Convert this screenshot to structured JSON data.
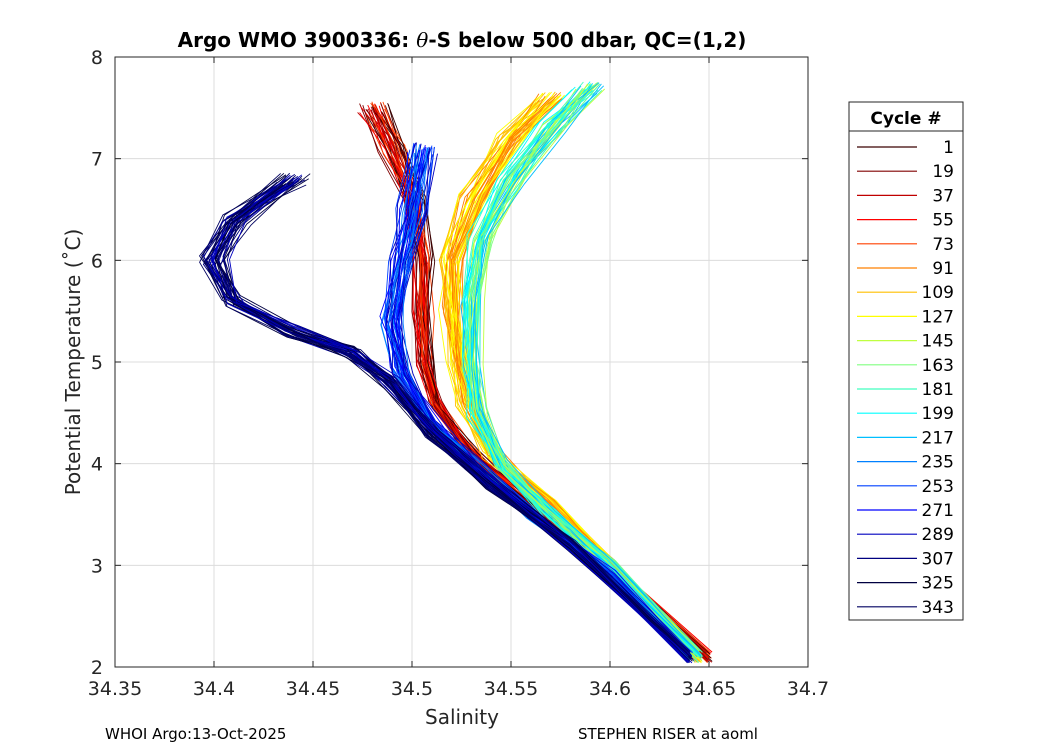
{
  "chart_data": {
    "type": "line",
    "title_prefix": "Argo WMO 3900336: ",
    "title_theta": "θ",
    "title_suffix": "-S below 500 dbar,  QC=(1,2)",
    "xlabel": "Salinity",
    "ylabel": "Potential Temperature (˚C)",
    "xlim": [
      34.35,
      34.7
    ],
    "ylim": [
      2,
      8
    ],
    "xticks": [
      34.35,
      34.4,
      34.45,
      34.5,
      34.55,
      34.6,
      34.65,
      34.7
    ],
    "xtick_labels": [
      "34.35",
      "34.4",
      "34.45",
      "34.5",
      "34.55",
      "34.6",
      "34.65",
      "34.7"
    ],
    "yticks": [
      2,
      3,
      4,
      5,
      6,
      7,
      8
    ],
    "ytick_labels": [
      "2",
      "3",
      "4",
      "5",
      "6",
      "7",
      "8"
    ],
    "grid": true,
    "legend_title": "Cycle #",
    "legend_position": "right",
    "legend": [
      {
        "label": "1",
        "color": "#3a0000"
      },
      {
        "label": "19",
        "color": "#800000"
      },
      {
        "label": "37",
        "color": "#c00000"
      },
      {
        "label": "55",
        "color": "#ff0000"
      },
      {
        "label": "73",
        "color": "#ff4000"
      },
      {
        "label": "91",
        "color": "#ff8000"
      },
      {
        "label": "109",
        "color": "#ffbf00"
      },
      {
        "label": "127",
        "color": "#ffff00"
      },
      {
        "label": "145",
        "color": "#bfff40"
      },
      {
        "label": "163",
        "color": "#80ff80"
      },
      {
        "label": "181",
        "color": "#40ffbf"
      },
      {
        "label": "199",
        "color": "#00ffff"
      },
      {
        "label": "217",
        "color": "#00bfff"
      },
      {
        "label": "235",
        "color": "#0080ff"
      },
      {
        "label": "253",
        "color": "#0040ff"
      },
      {
        "label": "271",
        "color": "#0000ff"
      },
      {
        "label": "289",
        "color": "#0000bf"
      },
      {
        "label": "307",
        "color": "#000080"
      },
      {
        "label": "325",
        "color": "#000040"
      },
      {
        "label": "343",
        "color": "#000060"
      }
    ],
    "profile_families": [
      {
        "name": "early-red",
        "colors": [
          "#3a0000",
          "#800000",
          "#c00000",
          "#ff0000",
          "#ff4000"
        ],
        "points": [
          [
            34.48,
            7.5
          ],
          [
            34.49,
            7.1
          ],
          [
            34.5,
            6.6
          ],
          [
            34.505,
            6.0
          ],
          [
            34.505,
            5.5
          ],
          [
            34.507,
            5.0
          ],
          [
            34.512,
            4.6
          ],
          [
            34.53,
            4.1
          ],
          [
            34.56,
            3.6
          ],
          [
            34.6,
            3.0
          ],
          [
            34.65,
            2.1
          ]
        ]
      },
      {
        "name": "orange-yellow",
        "colors": [
          "#ff8000",
          "#ffbf00",
          "#ffff00"
        ],
        "points": [
          [
            34.57,
            7.6
          ],
          [
            34.55,
            7.2
          ],
          [
            34.53,
            6.6
          ],
          [
            34.52,
            6.0
          ],
          [
            34.52,
            5.5
          ],
          [
            34.523,
            5.0
          ],
          [
            34.527,
            4.6
          ],
          [
            34.54,
            4.1
          ],
          [
            34.57,
            3.6
          ],
          [
            34.6,
            3.0
          ],
          [
            34.645,
            2.1
          ]
        ]
      },
      {
        "name": "green-cyan",
        "colors": [
          "#bfff40",
          "#80ff80",
          "#40ffbf",
          "#00ffff",
          "#00bfff"
        ],
        "points": [
          [
            34.59,
            7.7
          ],
          [
            34.57,
            7.3
          ],
          [
            34.55,
            6.8
          ],
          [
            34.535,
            6.2
          ],
          [
            34.53,
            5.6
          ],
          [
            34.53,
            5.0
          ],
          [
            34.533,
            4.5
          ],
          [
            34.545,
            4.0
          ],
          [
            34.57,
            3.5
          ],
          [
            34.6,
            3.0
          ],
          [
            34.645,
            2.1
          ]
        ]
      },
      {
        "name": "blue",
        "colors": [
          "#0080ff",
          "#0040ff",
          "#0000ff",
          "#0000bf"
        ],
        "points": [
          [
            34.505,
            7.1
          ],
          [
            34.5,
            6.5
          ],
          [
            34.495,
            6.0
          ],
          [
            34.49,
            5.4
          ],
          [
            34.495,
            4.9
          ],
          [
            34.51,
            4.4
          ],
          [
            34.53,
            4.0
          ],
          [
            34.56,
            3.5
          ],
          [
            34.6,
            2.9
          ],
          [
            34.64,
            2.1
          ]
        ]
      },
      {
        "name": "deep-blue",
        "colors": [
          "#000080",
          "#000040",
          "#000060",
          "#0000bf"
        ],
        "points": [
          [
            34.44,
            6.8
          ],
          [
            34.41,
            6.4
          ],
          [
            34.4,
            6.0
          ],
          [
            34.41,
            5.6
          ],
          [
            34.44,
            5.3
          ],
          [
            34.47,
            5.1
          ],
          [
            34.49,
            4.8
          ],
          [
            34.51,
            4.3
          ],
          [
            34.54,
            3.8
          ],
          [
            34.58,
            3.2
          ],
          [
            34.64,
            2.1
          ]
        ]
      }
    ]
  },
  "footer": {
    "left": "WHOI Argo:13-Oct-2025",
    "right": "STEPHEN RISER at aoml"
  }
}
